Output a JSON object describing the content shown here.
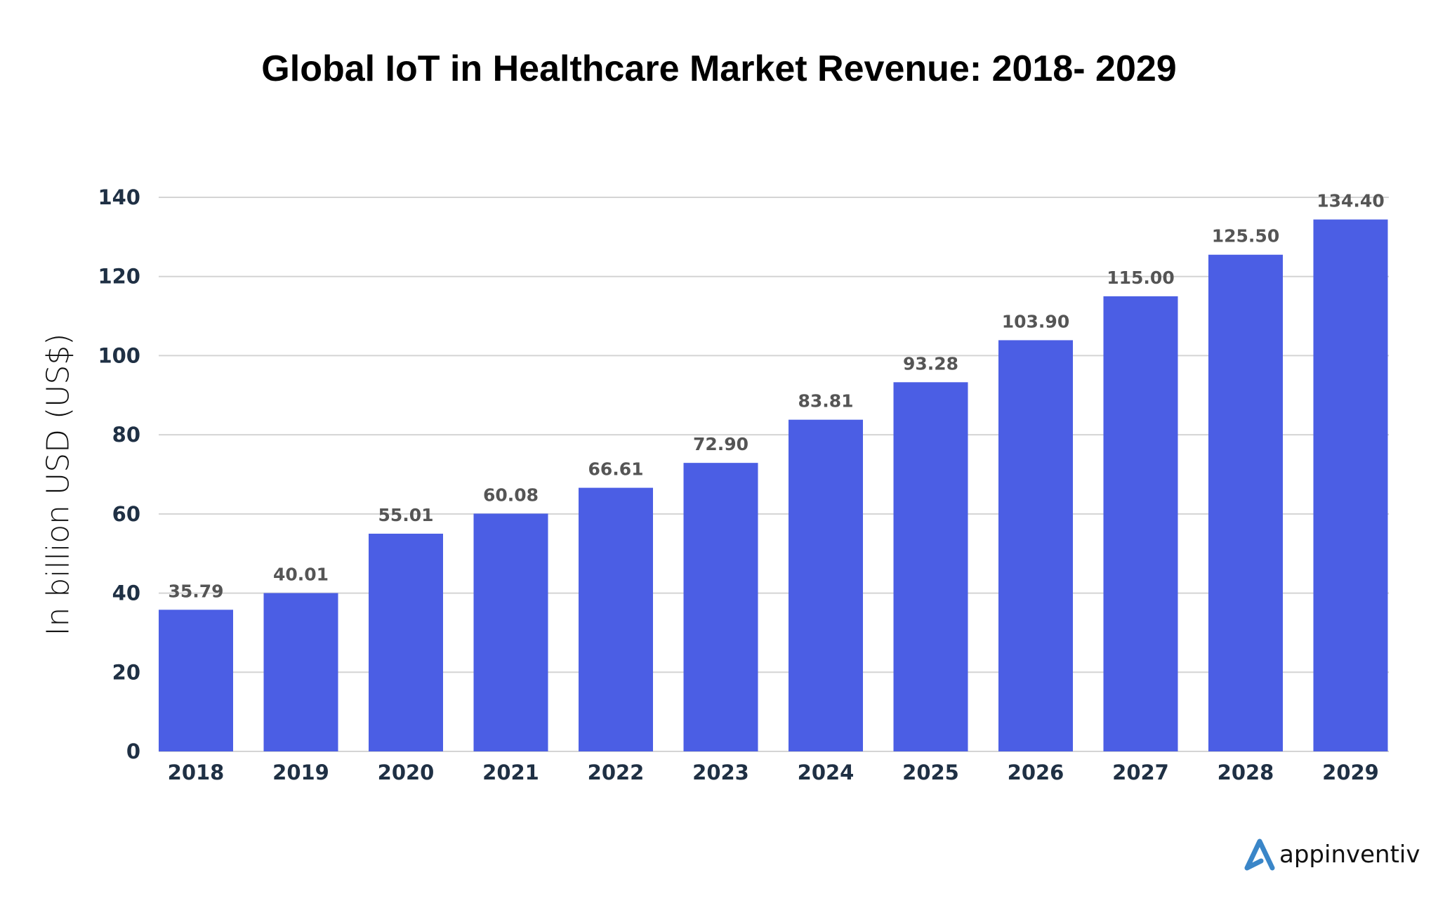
{
  "chart_data": {
    "type": "bar",
    "title": "Global IoT in Healthcare Market Revenue: 2018- 2029",
    "xlabel": "",
    "ylabel": "In billion USD (US$)",
    "categories": [
      "2018",
      "2019",
      "2020",
      "2021",
      "2022",
      "2023",
      "2024",
      "2025",
      "2026",
      "2027",
      "2028",
      "2029"
    ],
    "values": [
      35.79,
      40.01,
      55.01,
      60.08,
      66.61,
      72.9,
      83.81,
      93.28,
      103.9,
      115.0,
      125.5,
      134.4
    ],
    "value_labels": [
      "35.79",
      "40.01",
      "55.01",
      "60.08",
      "66.61",
      "72.90",
      "83.81",
      "93.28",
      "103.90",
      "115.00",
      "125.50",
      "134.40"
    ],
    "ylim": [
      0,
      140
    ],
    "yticks": [
      0,
      20,
      40,
      60,
      80,
      100,
      120,
      140
    ],
    "grid": true,
    "legend": "none",
    "bar_color": "#4b5ee4"
  },
  "brand": {
    "logo_text": "appinventiv",
    "logo_color": "#3a86c8"
  }
}
